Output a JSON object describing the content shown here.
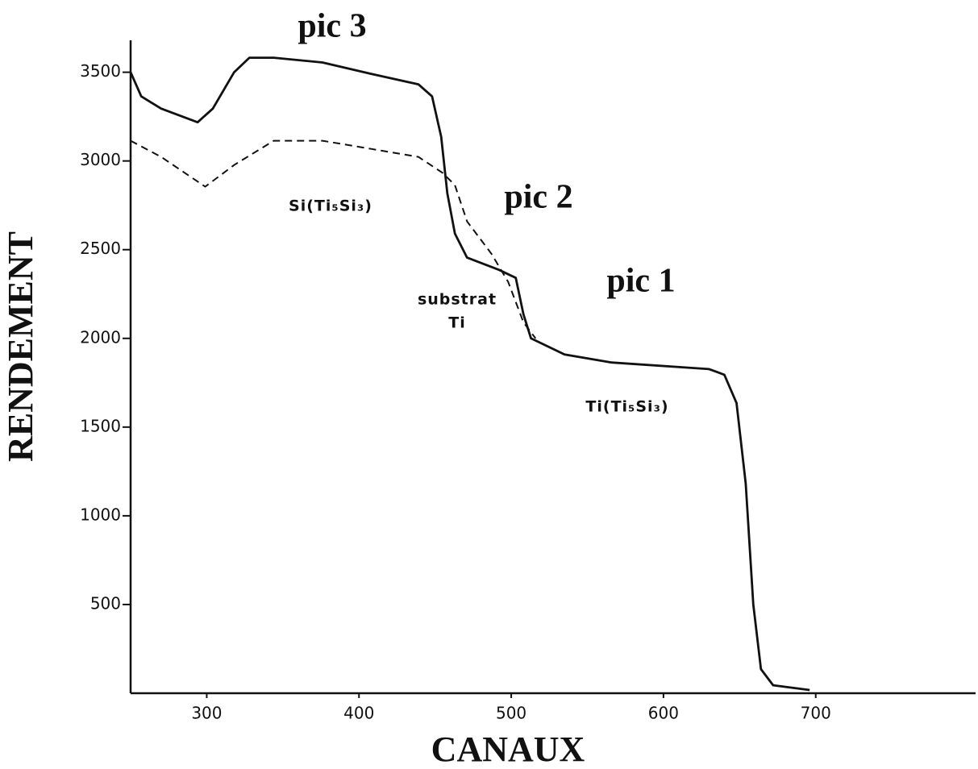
{
  "chart_data": {
    "type": "line",
    "xlabel": "CANAUX",
    "ylabel": "RENDEMENT",
    "xlim": [
      250,
      805
    ],
    "ylim": [
      0,
      3680
    ],
    "xticks": [
      300,
      400,
      500,
      600,
      700
    ],
    "yticks": [
      500,
      1000,
      1500,
      2000,
      2500,
      3000,
      3500
    ],
    "annotations": [
      "pic 3",
      "pic 2",
      "pic 1",
      "Si(Ti₅Si₃)",
      "substrat",
      "Ti",
      "Ti(Ti₅Si₃)"
    ],
    "series": [
      {
        "color": "#111111",
        "linestyle": "solid",
        "x": [
          250,
          257,
          270,
          294,
          304,
          318,
          328,
          344,
          376,
          408,
          439,
          448,
          454,
          458,
          463,
          471,
          492,
          503,
          508,
          513,
          535,
          566,
          630,
          640,
          648,
          654,
          659,
          664,
          672,
          696
        ],
        "values": [
          3500,
          3364,
          3295,
          3218,
          3295,
          3500,
          3582,
          3582,
          3555,
          3491,
          3432,
          3364,
          3136,
          2818,
          2591,
          2455,
          2386,
          2341,
          2136,
          2000,
          1909,
          1864,
          1827,
          1795,
          1636,
          1182,
          500,
          136,
          45,
          18
        ]
      },
      {
        "color": "#111111",
        "linestyle": "dashed",
        "x": [
          250,
          270,
          299,
          318,
          344,
          376,
          408,
          439,
          455,
          463,
          471,
          487,
          498,
          508,
          516
        ],
        "values": [
          3114,
          3023,
          2855,
          2977,
          3114,
          3114,
          3068,
          3023,
          2932,
          2864,
          2659,
          2477,
          2318,
          2091,
          2000
        ]
      }
    ]
  }
}
